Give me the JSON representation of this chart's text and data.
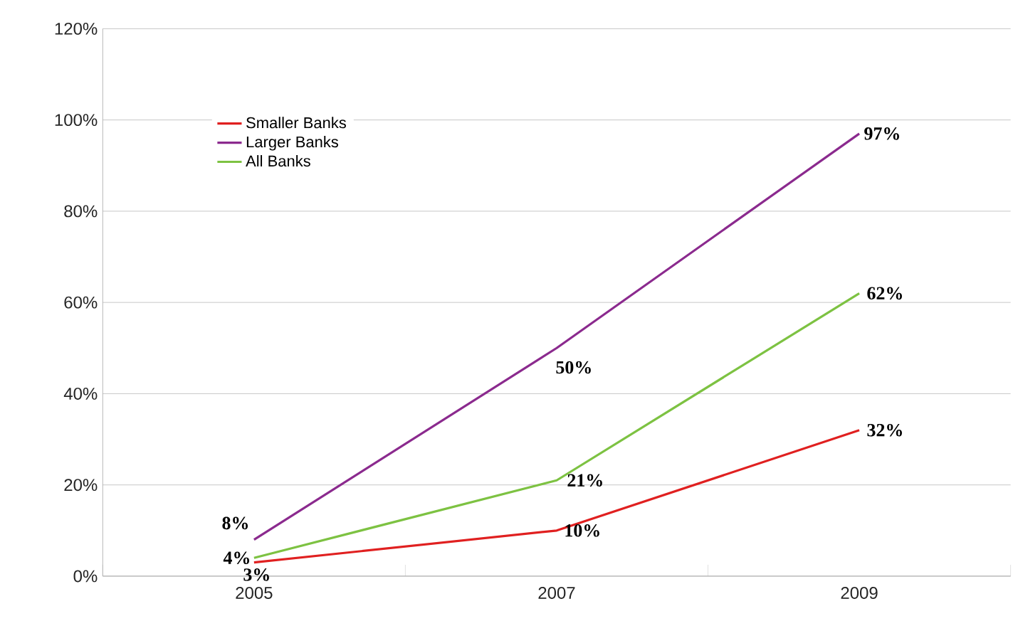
{
  "chart_data": {
    "type": "line",
    "categories": [
      "2005",
      "2007",
      "2009"
    ],
    "series": [
      {
        "name": "Smaller Banks",
        "color": "#e02020",
        "values": [
          3,
          10,
          32
        ],
        "value_labels": [
          "3%",
          "10%",
          "32%"
        ]
      },
      {
        "name": "Larger Banks",
        "color": "#8b2a8e",
        "values": [
          8,
          50,
          97
        ],
        "value_labels": [
          "8%",
          "50%",
          "97%"
        ]
      },
      {
        "name": "All Banks",
        "color": "#7dc242",
        "values": [
          4,
          21,
          62
        ],
        "value_labels": [
          "4%",
          "21%",
          "62%"
        ]
      }
    ],
    "ylim": [
      0,
      120
    ],
    "yticks": [
      {
        "value": 0,
        "label": "0%"
      },
      {
        "value": 20,
        "label": "20%"
      },
      {
        "value": 40,
        "label": "40%"
      },
      {
        "value": 60,
        "label": "60%"
      },
      {
        "value": 80,
        "label": "80%"
      },
      {
        "value": 100,
        "label": "100%"
      },
      {
        "value": 120,
        "label": "120%"
      }
    ],
    "grid": "y",
    "legend": "top left",
    "marker": "none",
    "line_style": "solid"
  }
}
